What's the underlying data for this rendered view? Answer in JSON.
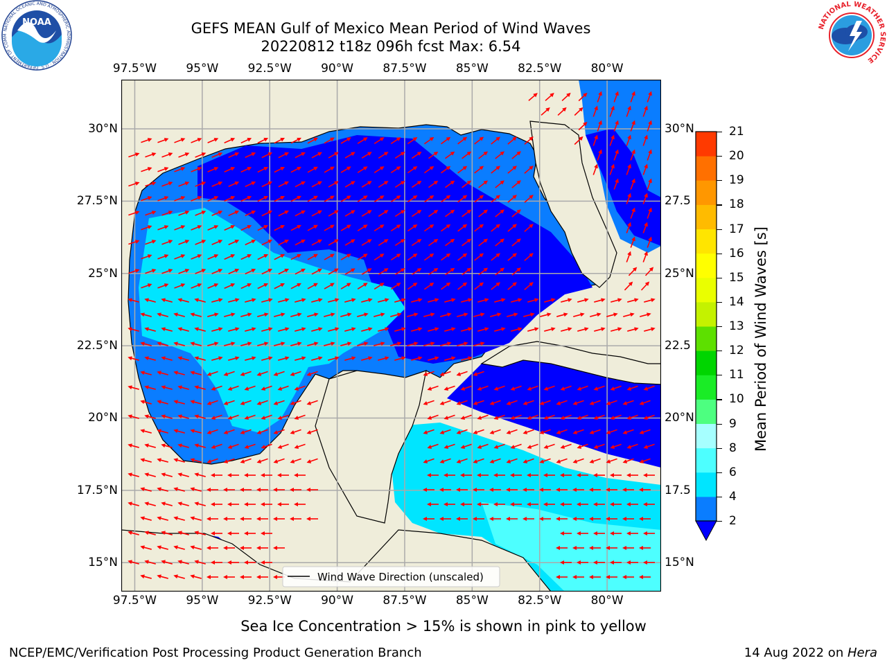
{
  "header": {
    "title_line1": "GEFS MEAN Gulf of Mexico Mean Period of Wind Waves",
    "title_line2": "20220812 t18z 096h fcst   Max: 6.54"
  },
  "logos": {
    "left": {
      "name": "noaa-logo",
      "text": "NOAA",
      "ring_text": "NATIONAL OCEANIC AND ATMOSPHERIC ADMINISTRATION · U.S. DEPARTMENT OF COMMERCE"
    },
    "right": {
      "name": "nws-logo",
      "ring_text": "NATIONAL WEATHER SERVICE"
    }
  },
  "map": {
    "lon_ticks_top": [
      "97.5°W",
      "95°W",
      "92.5°W",
      "90°W",
      "87.5°W",
      "85°W",
      "82.5°W",
      "80°W"
    ],
    "lon_ticks_bottom": [
      "97.5°W",
      "95°W",
      "92.5°W",
      "90°W",
      "87.5°W",
      "85°W",
      "82.5°W",
      "80°W"
    ],
    "lat_ticks_left": [
      "30°N",
      "27.5°N",
      "25°N",
      "22.5°N",
      "20°N",
      "17.5°N",
      "15°N"
    ],
    "lat_ticks_right": [
      "30°N",
      "27.5",
      "25°N",
      "22.5",
      "20°N",
      "17.5",
      "15°N"
    ],
    "lon_values": [
      -97.5,
      -95,
      -92.5,
      -90,
      -87.5,
      -85,
      -82.5,
      -80
    ],
    "lat_values": [
      30,
      27.5,
      25,
      22.5,
      20,
      17.5,
      15
    ],
    "extent": {
      "lon": [
        -98,
        -78
      ],
      "lat": [
        14,
        31.7
      ]
    },
    "legend_label": "Wind Wave Direction (unscaled)",
    "land_color": "#efedda",
    "arrow_color": "#ff0000"
  },
  "colorbar": {
    "label": "Mean Period of Wind Waves [s]",
    "tick_labels": [
      "2",
      "4",
      "6",
      "8",
      "9",
      "10",
      "11",
      "12",
      "13",
      "14",
      "15",
      "16",
      "17",
      "18",
      "19",
      "20",
      "21"
    ],
    "colors": [
      "#0a7dff",
      "#00e5ff",
      "#4dffff",
      "#a6ffff",
      "#4dff80",
      "#1aec26",
      "#00d500",
      "#5de000",
      "#c4f200",
      "#eaff00",
      "#ffff00",
      "#ffe500",
      "#ffbb00",
      "#ff9700",
      "#ff7000",
      "#ff3a00",
      "#ff0000"
    ],
    "extend_color": "#0000ff"
  },
  "notes": {
    "sea_ice": "Sea Ice Concentration > 15% is shown in pink to yellow"
  },
  "footer": {
    "left": "NCEP/EMC/Verification Post Processing Product Generation Branch",
    "right_date": "14 Aug 2022 on ",
    "right_host": "Hera"
  }
}
